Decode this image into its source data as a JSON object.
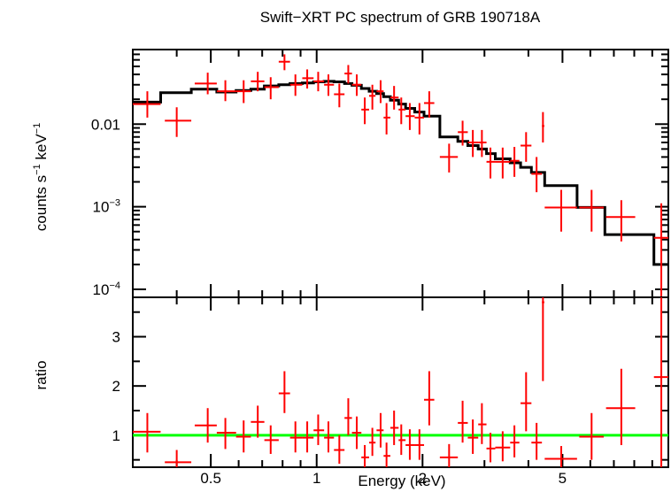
{
  "chart_data": [
    {
      "type": "scatter",
      "panel": "spectrum",
      "title": "Swift−XRT PC spectrum of GRB 190718A",
      "ylabel_main": "counts s",
      "ylabel_exp1": "−1",
      "ylabel_mid": " keV",
      "ylabel_exp2": "−1",
      "xscale": "log",
      "yscale": "log",
      "xlim": [
        0.3,
        10
      ],
      "ylim": [
        8e-05,
        0.08
      ],
      "y_ticks": [
        {
          "value": 0.01,
          "label": "0.01",
          "exp": ""
        },
        {
          "value": 0.001,
          "label": "10",
          "exp": "−3"
        },
        {
          "value": 0.0001,
          "label": "10",
          "exp": "−4"
        }
      ],
      "data_color": "#ff0000",
      "model_color": "#000000",
      "data": [
        {
          "x": 0.33,
          "xl": 0.3,
          "xh": 0.36,
          "y": 0.0175,
          "yl": 0.012,
          "yh": 0.025
        },
        {
          "x": 0.4,
          "xl": 0.37,
          "xh": 0.44,
          "y": 0.011,
          "yl": 0.007,
          "yh": 0.016
        },
        {
          "x": 0.49,
          "xl": 0.45,
          "xh": 0.52,
          "y": 0.031,
          "yl": 0.023,
          "yh": 0.042
        },
        {
          "x": 0.55,
          "xl": 0.52,
          "xh": 0.59,
          "y": 0.025,
          "yl": 0.019,
          "yh": 0.034
        },
        {
          "x": 0.62,
          "xl": 0.59,
          "xh": 0.65,
          "y": 0.025,
          "yl": 0.018,
          "yh": 0.034
        },
        {
          "x": 0.68,
          "xl": 0.65,
          "xh": 0.71,
          "y": 0.033,
          "yl": 0.025,
          "yh": 0.043
        },
        {
          "x": 0.74,
          "xl": 0.71,
          "xh": 0.78,
          "y": 0.028,
          "yl": 0.02,
          "yh": 0.037
        },
        {
          "x": 0.81,
          "xl": 0.78,
          "xh": 0.84,
          "y": 0.057,
          "yl": 0.045,
          "yh": 0.07
        },
        {
          "x": 0.87,
          "xl": 0.84,
          "xh": 0.91,
          "y": 0.03,
          "yl": 0.022,
          "yh": 0.04
        },
        {
          "x": 0.94,
          "xl": 0.91,
          "xh": 0.98,
          "y": 0.036,
          "yl": 0.027,
          "yh": 0.046
        },
        {
          "x": 1.01,
          "xl": 0.98,
          "xh": 1.05,
          "y": 0.033,
          "yl": 0.025,
          "yh": 0.043
        },
        {
          "x": 1.08,
          "xl": 1.05,
          "xh": 1.12,
          "y": 0.03,
          "yl": 0.022,
          "yh": 0.04
        },
        {
          "x": 1.16,
          "xl": 1.12,
          "xh": 1.2,
          "y": 0.023,
          "yl": 0.016,
          "yh": 0.031
        },
        {
          "x": 1.23,
          "xl": 1.2,
          "xh": 1.26,
          "y": 0.041,
          "yl": 0.031,
          "yh": 0.052
        },
        {
          "x": 1.3,
          "xl": 1.26,
          "xh": 1.34,
          "y": 0.03,
          "yl": 0.022,
          "yh": 0.04
        },
        {
          "x": 1.37,
          "xl": 1.34,
          "xh": 1.41,
          "y": 0.015,
          "yl": 0.01,
          "yh": 0.021
        },
        {
          "x": 1.44,
          "xl": 1.41,
          "xh": 1.47,
          "y": 0.022,
          "yl": 0.015,
          "yh": 0.03
        },
        {
          "x": 1.52,
          "xl": 1.48,
          "xh": 1.55,
          "y": 0.025,
          "yl": 0.018,
          "yh": 0.034
        },
        {
          "x": 1.58,
          "xl": 1.55,
          "xh": 1.62,
          "y": 0.012,
          "yl": 0.0075,
          "yh": 0.018
        },
        {
          "x": 1.66,
          "xl": 1.62,
          "xh": 1.71,
          "y": 0.021,
          "yl": 0.015,
          "yh": 0.029
        },
        {
          "x": 1.74,
          "xl": 1.71,
          "xh": 1.79,
          "y": 0.015,
          "yl": 0.01,
          "yh": 0.021
        },
        {
          "x": 1.84,
          "xl": 1.79,
          "xh": 1.9,
          "y": 0.0125,
          "yl": 0.0085,
          "yh": 0.018
        },
        {
          "x": 1.96,
          "xl": 1.9,
          "xh": 2.02,
          "y": 0.012,
          "yl": 0.0075,
          "yh": 0.018
        },
        {
          "x": 2.09,
          "xl": 2.02,
          "xh": 2.16,
          "y": 0.018,
          "yl": 0.012,
          "yh": 0.025
        },
        {
          "x": 2.38,
          "xl": 2.24,
          "xh": 2.52,
          "y": 0.004,
          "yl": 0.0026,
          "yh": 0.0058
        },
        {
          "x": 2.6,
          "xl": 2.52,
          "xh": 2.69,
          "y": 0.008,
          "yl": 0.0055,
          "yh": 0.011
        },
        {
          "x": 2.78,
          "xl": 2.69,
          "xh": 2.88,
          "y": 0.006,
          "yl": 0.004,
          "yh": 0.0085
        },
        {
          "x": 2.95,
          "xl": 2.88,
          "xh": 3.04,
          "y": 0.006,
          "yl": 0.004,
          "yh": 0.0085
        },
        {
          "x": 3.12,
          "xl": 3.04,
          "xh": 3.22,
          "y": 0.0035,
          "yl": 0.0022,
          "yh": 0.0052
        },
        {
          "x": 3.38,
          "xl": 3.22,
          "xh": 3.55,
          "y": 0.0035,
          "yl": 0.0022,
          "yh": 0.0052
        },
        {
          "x": 3.65,
          "xl": 3.55,
          "xh": 3.77,
          "y": 0.0036,
          "yl": 0.0023,
          "yh": 0.0053
        },
        {
          "x": 3.94,
          "xl": 3.8,
          "xh": 4.08,
          "y": 0.0055,
          "yl": 0.0035,
          "yh": 0.008
        },
        {
          "x": 4.22,
          "xl": 4.08,
          "xh": 4.37,
          "y": 0.0025,
          "yl": 0.0015,
          "yh": 0.004
        },
        {
          "x": 4.4,
          "xl": 4.37,
          "xh": 4.44,
          "y": 0.0095,
          "yl": 0.006,
          "yh": 0.014
        },
        {
          "x": 4.96,
          "xl": 4.45,
          "xh": 5.5,
          "y": 0.00098,
          "yl": 0.0005,
          "yh": 0.0016
        },
        {
          "x": 6.05,
          "xl": 5.58,
          "xh": 6.55,
          "y": 0.00098,
          "yl": 0.0005,
          "yh": 0.0016
        },
        {
          "x": 7.35,
          "xl": 6.65,
          "xh": 8.05,
          "y": 0.00075,
          "yl": 0.00038,
          "yh": 0.0012
        },
        {
          "x": 9.55,
          "xl": 9.1,
          "xh": 10.0,
          "y": 0.00042,
          "yl": 8e-05,
          "yh": 0.0011
        }
      ],
      "model_steps": [
        {
          "x0": 0.3,
          "x1": 0.36,
          "y": 0.0185
        },
        {
          "x0": 0.36,
          "x1": 0.44,
          "y": 0.024
        },
        {
          "x0": 0.44,
          "x1": 0.52,
          "y": 0.0265
        },
        {
          "x0": 0.52,
          "x1": 0.59,
          "y": 0.0245
        },
        {
          "x0": 0.59,
          "x1": 0.65,
          "y": 0.0255
        },
        {
          "x0": 0.65,
          "x1": 0.71,
          "y": 0.0265
        },
        {
          "x0": 0.71,
          "x1": 0.78,
          "y": 0.029
        },
        {
          "x0": 0.78,
          "x1": 0.84,
          "y": 0.03
        },
        {
          "x0": 0.84,
          "x1": 0.91,
          "y": 0.031
        },
        {
          "x0": 0.91,
          "x1": 0.98,
          "y": 0.0315
        },
        {
          "x0": 0.98,
          "x1": 1.05,
          "y": 0.0325
        },
        {
          "x0": 1.05,
          "x1": 1.12,
          "y": 0.033
        },
        {
          "x0": 1.12,
          "x1": 1.2,
          "y": 0.0325
        },
        {
          "x0": 1.2,
          "x1": 1.26,
          "y": 0.031
        },
        {
          "x0": 1.26,
          "x1": 1.34,
          "y": 0.0295
        },
        {
          "x0": 1.34,
          "x1": 1.41,
          "y": 0.027
        },
        {
          "x0": 1.41,
          "x1": 1.48,
          "y": 0.025
        },
        {
          "x0": 1.48,
          "x1": 1.55,
          "y": 0.0235
        },
        {
          "x0": 1.55,
          "x1": 1.62,
          "y": 0.0215
        },
        {
          "x0": 1.62,
          "x1": 1.71,
          "y": 0.0195
        },
        {
          "x0": 1.71,
          "x1": 1.79,
          "y": 0.0175
        },
        {
          "x0": 1.79,
          "x1": 1.9,
          "y": 0.0155
        },
        {
          "x0": 1.9,
          "x1": 2.02,
          "y": 0.014
        },
        {
          "x0": 2.02,
          "x1": 2.24,
          "y": 0.0125
        },
        {
          "x0": 2.24,
          "x1": 2.52,
          "y": 0.007
        },
        {
          "x0": 2.52,
          "x1": 2.69,
          "y": 0.0062
        },
        {
          "x0": 2.69,
          "x1": 2.88,
          "y": 0.0055
        },
        {
          "x0": 2.88,
          "x1": 3.04,
          "y": 0.005
        },
        {
          "x0": 3.04,
          "x1": 3.22,
          "y": 0.0044
        },
        {
          "x0": 3.22,
          "x1": 3.55,
          "y": 0.0038
        },
        {
          "x0": 3.55,
          "x1": 3.8,
          "y": 0.0034
        },
        {
          "x0": 3.8,
          "x1": 4.08,
          "y": 0.003
        },
        {
          "x0": 4.08,
          "x1": 4.45,
          "y": 0.0026
        },
        {
          "x0": 4.45,
          "x1": 5.5,
          "y": 0.0018
        },
        {
          "x0": 5.5,
          "x1": 6.6,
          "y": 0.00098
        },
        {
          "x0": 6.6,
          "x1": 9.1,
          "y": 0.00046
        },
        {
          "x0": 9.1,
          "x1": 10.0,
          "y": 0.0002
        }
      ]
    },
    {
      "type": "scatter",
      "panel": "ratio",
      "ylabel": "ratio",
      "xlabel": "Energy (keV)",
      "xscale": "log",
      "xlim": [
        0.3,
        10
      ],
      "ylim": [
        0.35,
        3.8
      ],
      "y_ticks": [
        1,
        2,
        3
      ],
      "x_ticks": [
        {
          "value": 0.5,
          "label": "0.5"
        },
        {
          "value": 1,
          "label": "1"
        },
        {
          "value": 2,
          "label": "2"
        },
        {
          "value": 5,
          "label": "5"
        }
      ],
      "reference_line": 1,
      "reference_color": "#00ff00",
      "data_color": "#ff0000",
      "data": [
        {
          "x": 0.33,
          "xl": 0.3,
          "xh": 0.36,
          "y": 1.07,
          "yl": 0.65,
          "yh": 1.45
        },
        {
          "x": 0.4,
          "xl": 0.37,
          "xh": 0.44,
          "y": 0.45,
          "yl": 0.35,
          "yh": 0.7
        },
        {
          "x": 0.49,
          "xl": 0.45,
          "xh": 0.52,
          "y": 1.2,
          "yl": 0.85,
          "yh": 1.55
        },
        {
          "x": 0.55,
          "xl": 0.52,
          "xh": 0.59,
          "y": 1.05,
          "yl": 0.72,
          "yh": 1.35
        },
        {
          "x": 0.62,
          "xl": 0.59,
          "xh": 0.65,
          "y": 0.97,
          "yl": 0.65,
          "yh": 1.3
        },
        {
          "x": 0.68,
          "xl": 0.65,
          "xh": 0.71,
          "y": 1.27,
          "yl": 0.95,
          "yh": 1.6
        },
        {
          "x": 0.74,
          "xl": 0.71,
          "xh": 0.78,
          "y": 0.9,
          "yl": 0.62,
          "yh": 1.2
        },
        {
          "x": 0.81,
          "xl": 0.78,
          "xh": 0.84,
          "y": 1.85,
          "yl": 1.45,
          "yh": 2.3
        },
        {
          "x": 0.87,
          "xl": 0.84,
          "xh": 0.91,
          "y": 0.95,
          "yl": 0.65,
          "yh": 1.28
        },
        {
          "x": 0.94,
          "xl": 0.91,
          "xh": 0.98,
          "y": 0.95,
          "yl": 0.65,
          "yh": 1.28
        },
        {
          "x": 1.01,
          "xl": 0.98,
          "xh": 1.05,
          "y": 1.1,
          "yl": 0.8,
          "yh": 1.42
        },
        {
          "x": 1.08,
          "xl": 1.05,
          "xh": 1.12,
          "y": 0.95,
          "yl": 0.65,
          "yh": 1.28
        },
        {
          "x": 1.16,
          "xl": 1.12,
          "xh": 1.2,
          "y": 0.7,
          "yl": 0.42,
          "yh": 1.0
        },
        {
          "x": 1.23,
          "xl": 1.2,
          "xh": 1.26,
          "y": 1.35,
          "yl": 1.0,
          "yh": 1.75
        },
        {
          "x": 1.3,
          "xl": 1.26,
          "xh": 1.34,
          "y": 1.05,
          "yl": 0.72,
          "yh": 1.38
        },
        {
          "x": 1.37,
          "xl": 1.34,
          "xh": 1.41,
          "y": 0.55,
          "yl": 0.35,
          "yh": 0.8
        },
        {
          "x": 1.44,
          "xl": 1.41,
          "xh": 1.47,
          "y": 0.85,
          "yl": 0.58,
          "yh": 1.15
        },
        {
          "x": 1.52,
          "xl": 1.48,
          "xh": 1.55,
          "y": 1.1,
          "yl": 0.75,
          "yh": 1.45
        },
        {
          "x": 1.58,
          "xl": 1.55,
          "xh": 1.62,
          "y": 0.58,
          "yl": 0.35,
          "yh": 0.85
        },
        {
          "x": 1.66,
          "xl": 1.62,
          "xh": 1.71,
          "y": 1.15,
          "yl": 0.8,
          "yh": 1.5
        },
        {
          "x": 1.74,
          "xl": 1.71,
          "xh": 1.79,
          "y": 0.9,
          "yl": 0.6,
          "yh": 1.22
        },
        {
          "x": 1.84,
          "xl": 1.79,
          "xh": 1.9,
          "y": 0.8,
          "yl": 0.5,
          "yh": 1.12
        },
        {
          "x": 1.96,
          "xl": 1.9,
          "xh": 2.02,
          "y": 0.8,
          "yl": 0.5,
          "yh": 1.12
        },
        {
          "x": 2.09,
          "xl": 2.02,
          "xh": 2.16,
          "y": 1.72,
          "yl": 1.2,
          "yh": 2.3
        },
        {
          "x": 2.38,
          "xl": 2.24,
          "xh": 2.52,
          "y": 0.55,
          "yl": 0.35,
          "yh": 0.82
        },
        {
          "x": 2.6,
          "xl": 2.52,
          "xh": 2.69,
          "y": 1.25,
          "yl": 0.85,
          "yh": 1.7
        },
        {
          "x": 2.78,
          "xl": 2.69,
          "xh": 2.88,
          "y": 0.95,
          "yl": 0.62,
          "yh": 1.32
        },
        {
          "x": 2.95,
          "xl": 2.88,
          "xh": 3.04,
          "y": 1.22,
          "yl": 0.82,
          "yh": 1.65
        },
        {
          "x": 3.12,
          "xl": 3.04,
          "xh": 3.22,
          "y": 0.73,
          "yl": 0.45,
          "yh": 1.05
        },
        {
          "x": 3.38,
          "xl": 3.22,
          "xh": 3.55,
          "y": 0.75,
          "yl": 0.47,
          "yh": 1.08
        },
        {
          "x": 3.65,
          "xl": 3.55,
          "xh": 3.77,
          "y": 0.85,
          "yl": 0.55,
          "yh": 1.2
        },
        {
          "x": 3.94,
          "xl": 3.8,
          "xh": 4.08,
          "y": 1.65,
          "yl": 1.08,
          "yh": 2.28
        },
        {
          "x": 4.22,
          "xl": 4.08,
          "xh": 4.37,
          "y": 0.85,
          "yl": 0.5,
          "yh": 1.25
        },
        {
          "x": 4.4,
          "xl": 4.37,
          "xh": 4.44,
          "y": 3.7,
          "yl": 2.1,
          "yh": 3.8
        },
        {
          "x": 4.96,
          "xl": 4.45,
          "xh": 5.5,
          "y": 0.52,
          "yl": 0.35,
          "yh": 0.78
        },
        {
          "x": 6.05,
          "xl": 5.58,
          "xh": 6.55,
          "y": 0.97,
          "yl": 0.5,
          "yh": 1.45
        },
        {
          "x": 7.35,
          "xl": 6.65,
          "xh": 8.05,
          "y": 1.55,
          "yl": 0.8,
          "yh": 2.35
        },
        {
          "x": 9.55,
          "xl": 9.1,
          "xh": 10.0,
          "y": 2.18,
          "yl": 0.35,
          "yh": 3.8
        }
      ]
    }
  ]
}
